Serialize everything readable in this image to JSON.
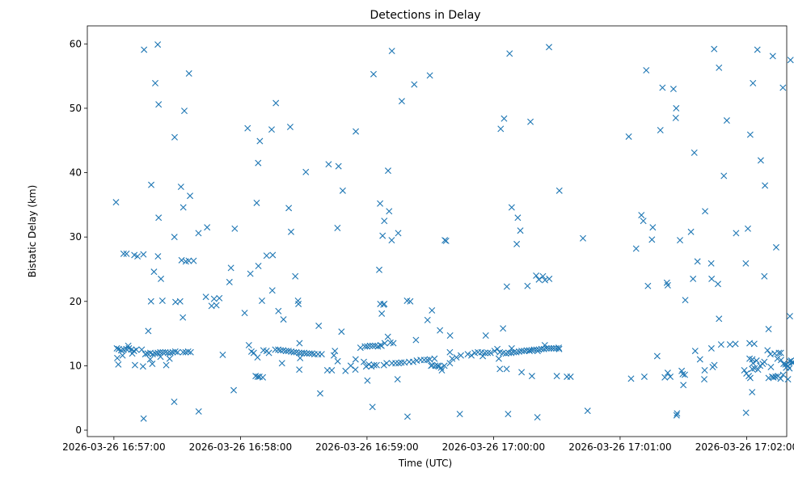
{
  "chart_data": {
    "type": "scatter",
    "title": "Detections in Delay",
    "xlabel": "Time (UTC)",
    "ylabel": "Bistatic Delay (km)",
    "marker": "x",
    "color": "#1f77b4",
    "grid": false,
    "legend": "none",
    "x_unit": "seconds after 2026-03-26 16:57:00 UTC",
    "xlim": [
      -12.6,
      319
    ],
    "ylim": [
      -1.0,
      62.8
    ],
    "x_ticks": [
      {
        "value": 0,
        "label": "2026-03-26 16:57:00"
      },
      {
        "value": 60,
        "label": "2026-03-26 16:58:00"
      },
      {
        "value": 120,
        "label": "2026-03-26 16:59:00"
      },
      {
        "value": 180,
        "label": "2026-03-26 17:00:00"
      },
      {
        "value": 240,
        "label": "2026-03-26 17:01:00"
      },
      {
        "value": 300,
        "label": "2026-03-26 17:02:00"
      }
    ],
    "y_ticks": [
      {
        "value": 0,
        "label": "0"
      },
      {
        "value": 10,
        "label": "10"
      },
      {
        "value": 20,
        "label": "20"
      },
      {
        "value": 30,
        "label": "30"
      },
      {
        "value": 40,
        "label": "40"
      },
      {
        "value": 50,
        "label": "50"
      },
      {
        "value": 60,
        "label": "60"
      }
    ],
    "points": [
      [
        14.3,
        59.1
      ],
      [
        20.8,
        59.9
      ],
      [
        19.6,
        53.9
      ],
      [
        21.2,
        50.6
      ],
      [
        35.6,
        55.4
      ],
      [
        28.8,
        45.5
      ],
      [
        33.4,
        49.6
      ],
      [
        63.4,
        46.9
      ],
      [
        69.2,
        44.9
      ],
      [
        74.8,
        46.7
      ],
      [
        83.6,
        47.1
      ],
      [
        76.8,
        50.8
      ],
      [
        101.8,
        41.3
      ],
      [
        114.7,
        46.4
      ],
      [
        123.1,
        55.3
      ],
      [
        131.8,
        58.9
      ],
      [
        136.5,
        51.1
      ],
      [
        142.4,
        53.7
      ],
      [
        149.8,
        55.1
      ],
      [
        187.6,
        58.5
      ],
      [
        183.4,
        46.8
      ],
      [
        185.0,
        48.4
      ],
      [
        197.5,
        47.9
      ],
      [
        206.3,
        59.5
      ],
      [
        252.4,
        55.9
      ],
      [
        244.1,
        45.6
      ],
      [
        260.1,
        53.2
      ],
      [
        265.3,
        53.0
      ],
      [
        266.6,
        50.0
      ],
      [
        266.4,
        48.5
      ],
      [
        284.6,
        59.2
      ],
      [
        286.9,
        56.3
      ],
      [
        290.6,
        48.1
      ],
      [
        259.1,
        46.6
      ],
      [
        275.2,
        43.1
      ],
      [
        305.1,
        59.1
      ],
      [
        303.0,
        53.9
      ],
      [
        312.4,
        58.1
      ],
      [
        320.8,
        57.5
      ],
      [
        317.2,
        53.2
      ],
      [
        301.7,
        45.9
      ],
      [
        1.0,
        35.4
      ],
      [
        17.7,
        38.1
      ],
      [
        31.8,
        37.8
      ],
      [
        21.2,
        33.0
      ],
      [
        28.7,
        30.0
      ],
      [
        32.9,
        34.6
      ],
      [
        36.1,
        36.4
      ],
      [
        40.1,
        30.6
      ],
      [
        44.2,
        31.5
      ],
      [
        57.3,
        31.3
      ],
      [
        67.7,
        35.3
      ],
      [
        68.4,
        41.5
      ],
      [
        82.9,
        34.5
      ],
      [
        84.0,
        30.8
      ],
      [
        91.0,
        40.1
      ],
      [
        106.0,
        31.4
      ],
      [
        106.5,
        41.0
      ],
      [
        108.5,
        37.2
      ],
      [
        127.4,
        30.2
      ],
      [
        126.2,
        35.2
      ],
      [
        128.2,
        32.5
      ],
      [
        130.5,
        34.0
      ],
      [
        131.7,
        29.5
      ],
      [
        134.8,
        30.6
      ],
      [
        130.0,
        40.3
      ],
      [
        156.9,
        29.5
      ],
      [
        157.5,
        29.4
      ],
      [
        191.0,
        28.9
      ],
      [
        191.5,
        33.0
      ],
      [
        192.7,
        31.0
      ],
      [
        188.6,
        34.6
      ],
      [
        211.2,
        37.2
      ],
      [
        222.4,
        29.8
      ],
      [
        250.1,
        33.4
      ],
      [
        251.0,
        32.5
      ],
      [
        255.5,
        31.5
      ],
      [
        255.1,
        29.6
      ],
      [
        262.6,
        22.5
      ],
      [
        268.4,
        29.5
      ],
      [
        273.6,
        30.8
      ],
      [
        280.3,
        34.0
      ],
      [
        289.2,
        39.5
      ],
      [
        295.0,
        30.6
      ],
      [
        300.6,
        31.3
      ],
      [
        306.7,
        41.9
      ],
      [
        308.7,
        38.0
      ],
      [
        314.0,
        28.4
      ],
      [
        283.2,
        25.9
      ],
      [
        299.6,
        25.9
      ],
      [
        286.4,
        22.7
      ],
      [
        286.9,
        17.3
      ],
      [
        274.6,
        23.5
      ],
      [
        283.4,
        23.5
      ],
      [
        276.7,
        26.2
      ],
      [
        270.9,
        20.2
      ],
      [
        262.2,
        22.9
      ],
      [
        253.2,
        22.4
      ],
      [
        247.6,
        28.2
      ],
      [
        216.5,
        8.3
      ],
      [
        214.8,
        8.3
      ],
      [
        4.6,
        27.4
      ],
      [
        6.0,
        27.4
      ],
      [
        9.7,
        27.2
      ],
      [
        11.2,
        27.0
      ],
      [
        14.0,
        27.3
      ],
      [
        20.9,
        27.0
      ],
      [
        19.0,
        24.6
      ],
      [
        22.3,
        23.5
      ],
      [
        23.0,
        20.1
      ],
      [
        17.6,
        20.0
      ],
      [
        34.1,
        26.2
      ],
      [
        35.5,
        26.3
      ],
      [
        32.1,
        26.4
      ],
      [
        37.8,
        26.3
      ],
      [
        29.2,
        19.9
      ],
      [
        31.4,
        20.0
      ],
      [
        43.6,
        20.7
      ],
      [
        47.5,
        20.4
      ],
      [
        50.0,
        20.5
      ],
      [
        46.3,
        19.3
      ],
      [
        48.6,
        19.4
      ],
      [
        55.5,
        25.2
      ],
      [
        54.8,
        23.0
      ],
      [
        64.7,
        24.3
      ],
      [
        68.5,
        25.5
      ],
      [
        70.2,
        20.1
      ],
      [
        72.4,
        27.1
      ],
      [
        75.3,
        27.2
      ],
      [
        75.1,
        21.7
      ],
      [
        78.0,
        18.5
      ],
      [
        80.4,
        17.2
      ],
      [
        86.0,
        23.9
      ],
      [
        87.5,
        19.6
      ],
      [
        87.3,
        20.1
      ],
      [
        97.1,
        16.2
      ],
      [
        107.9,
        15.3
      ],
      [
        125.8,
        24.9
      ],
      [
        126.3,
        19.6
      ],
      [
        127.0,
        18.1
      ],
      [
        127.8,
        19.5
      ],
      [
        128.2,
        19.6
      ],
      [
        148.7,
        17.1
      ],
      [
        150.8,
        18.6
      ],
      [
        154.6,
        15.5
      ],
      [
        159.4,
        14.7
      ],
      [
        176.3,
        14.7
      ],
      [
        184.5,
        15.8
      ],
      [
        200.2,
        24.0
      ],
      [
        201.5,
        23.4
      ],
      [
        203.4,
        23.9
      ],
      [
        204.4,
        23.3
      ],
      [
        206.4,
        23.5
      ],
      [
        196.1,
        22.4
      ],
      [
        186.3,
        22.3
      ],
      [
        139.0,
        20.1
      ],
      [
        140.5,
        20.0
      ],
      [
        159.3,
        12.1
      ],
      [
        308.4,
        23.9
      ],
      [
        310.4,
        15.7
      ],
      [
        316.2,
        12.0
      ],
      [
        320.5,
        17.7
      ],
      [
        275.6,
        12.3
      ],
      [
        283.3,
        12.7
      ],
      [
        280.1,
        9.3
      ],
      [
        287.9,
        13.3
      ],
      [
        292.1,
        13.3
      ],
      [
        294.7,
        13.4
      ],
      [
        301.4,
        13.5
      ],
      [
        303.6,
        13.4
      ],
      [
        2.3,
        12.6
      ],
      [
        3.4,
        12.4
      ],
      [
        4.6,
        12.5
      ],
      [
        5.9,
        12.6
      ],
      [
        7.1,
        12.7
      ],
      [
        8.3,
        12.5
      ],
      [
        9.5,
        12.3
      ],
      [
        10.6,
        12.5
      ],
      [
        1.4,
        12.7
      ],
      [
        1.6,
        11.2
      ],
      [
        2.1,
        10.2
      ],
      [
        4.1,
        11.6
      ],
      [
        6.8,
        13.1
      ],
      [
        8.7,
        11.9
      ],
      [
        10.0,
        10.1
      ],
      [
        14.9,
        11.8
      ],
      [
        16.0,
        11.9
      ],
      [
        17.3,
        12.0
      ],
      [
        18.4,
        11.8
      ],
      [
        19.6,
        11.9
      ],
      [
        20.8,
        12.0
      ],
      [
        22.0,
        12.1
      ],
      [
        23.2,
        12.1
      ],
      [
        24.4,
        12.1
      ],
      [
        25.6,
        12.0
      ],
      [
        26.8,
        12.0
      ],
      [
        27.9,
        12.1
      ],
      [
        29.1,
        12.2
      ],
      [
        30.2,
        12.1
      ],
      [
        32.8,
        12.1
      ],
      [
        34.0,
        12.1
      ],
      [
        35.2,
        12.2
      ],
      [
        36.4,
        12.1
      ],
      [
        13.2,
        12.5
      ],
      [
        13.8,
        9.9
      ],
      [
        17.2,
        11.0
      ],
      [
        18.2,
        10.3
      ],
      [
        22.1,
        11.4
      ],
      [
        26.4,
        11.1
      ],
      [
        32.7,
        17.5
      ],
      [
        24.8,
        10.1
      ],
      [
        16.3,
        15.4
      ],
      [
        51.6,
        11.7
      ],
      [
        62.0,
        18.2
      ],
      [
        64.0,
        13.2
      ],
      [
        65.2,
        12.2
      ],
      [
        66.3,
        12.0
      ],
      [
        72.4,
        12.3
      ],
      [
        73.5,
        12.0
      ],
      [
        70.6,
        8.2
      ],
      [
        70.9,
        12.4
      ],
      [
        68.2,
        8.3
      ],
      [
        69.0,
        8.3
      ],
      [
        67.2,
        8.4
      ],
      [
        68.1,
        11.3
      ],
      [
        76.5,
        12.5
      ],
      [
        77.9,
        12.5
      ],
      [
        79.0,
        12.4
      ],
      [
        80.3,
        12.4
      ],
      [
        81.6,
        12.3
      ],
      [
        82.8,
        12.3
      ],
      [
        84.1,
        12.2
      ],
      [
        85.3,
        12.1
      ],
      [
        86.5,
        12.1
      ],
      [
        87.8,
        12.0
      ],
      [
        89.0,
        12.0
      ],
      [
        90.2,
        12.0
      ],
      [
        91.4,
        11.9
      ],
      [
        92.7,
        11.9
      ],
      [
        93.9,
        11.9
      ],
      [
        95.1,
        11.8
      ],
      [
        96.8,
        11.8
      ],
      [
        98.5,
        11.8
      ],
      [
        88.3,
        11.2
      ],
      [
        88.0,
        13.5
      ],
      [
        79.7,
        10.4
      ],
      [
        87.9,
        9.4
      ],
      [
        101.2,
        9.3
      ],
      [
        103.3,
        9.3
      ],
      [
        104.3,
        11.6
      ],
      [
        106.1,
        10.7
      ],
      [
        104.8,
        12.3
      ],
      [
        109.8,
        9.2
      ],
      [
        112.3,
        10.0
      ],
      [
        114.6,
        11.0
      ],
      [
        116.9,
        12.8
      ],
      [
        118.5,
        10.6
      ],
      [
        119.0,
        13.0
      ],
      [
        119.6,
        9.9
      ],
      [
        120.1,
        13.0
      ],
      [
        120.9,
        10.2
      ],
      [
        121.4,
        13.1
      ],
      [
        122.1,
        9.9
      ],
      [
        122.7,
        13.1
      ],
      [
        123.4,
        10.1
      ],
      [
        123.9,
        13.1
      ],
      [
        124.6,
        10.1
      ],
      [
        125.2,
        13.0
      ],
      [
        126.4,
        13.2
      ],
      [
        126.9,
        13.1
      ],
      [
        128.0,
        10.1
      ],
      [
        128.4,
        13.5
      ],
      [
        129.3,
        10.4
      ],
      [
        131.1,
        13.6
      ],
      [
        131.8,
        10.4
      ],
      [
        132.5,
        13.5
      ],
      [
        133.5,
        10.4
      ],
      [
        135.0,
        10.4
      ],
      [
        136.3,
        10.5
      ],
      [
        137.8,
        10.5
      ],
      [
        140.0,
        10.6
      ],
      [
        141.9,
        10.6
      ],
      [
        143.2,
        14.0
      ],
      [
        143.6,
        10.8
      ],
      [
        145.4,
        10.9
      ],
      [
        147.1,
        10.9
      ],
      [
        148.6,
        10.9
      ],
      [
        149.8,
        11.0
      ],
      [
        150.4,
        10.0
      ],
      [
        150.9,
        10.1
      ],
      [
        152.0,
        11.1
      ],
      [
        152.4,
        10.0
      ],
      [
        153.5,
        10.0
      ],
      [
        154.0,
        9.9
      ],
      [
        155.1,
        9.7
      ],
      [
        155.5,
        9.3
      ],
      [
        156.7,
        10.0
      ],
      [
        159.3,
        10.4
      ],
      [
        160.4,
        11.1
      ],
      [
        162.4,
        11.3
      ],
      [
        164.5,
        11.6
      ],
      [
        167.8,
        11.8
      ],
      [
        169.5,
        11.6
      ],
      [
        171.1,
        12.0
      ],
      [
        172.6,
        12.1
      ],
      [
        174.3,
        12.1
      ],
      [
        175.9,
        12.0
      ],
      [
        177.3,
        12.0
      ],
      [
        178.6,
        12.0
      ],
      [
        180.5,
        12.3
      ],
      [
        181.8,
        12.6
      ],
      [
        183.0,
        12.1
      ],
      [
        184.5,
        12.0
      ],
      [
        185.9,
        11.9
      ],
      [
        187.2,
        12.0
      ],
      [
        188.4,
        12.0
      ],
      [
        189.6,
        12.1
      ],
      [
        190.8,
        12.1
      ],
      [
        192.1,
        12.2
      ],
      [
        193.3,
        12.3
      ],
      [
        194.5,
        12.3
      ],
      [
        195.7,
        12.4
      ],
      [
        196.9,
        12.4
      ],
      [
        198.1,
        12.4
      ],
      [
        199.2,
        12.5
      ],
      [
        200.3,
        12.5
      ],
      [
        201.5,
        12.5
      ],
      [
        202.7,
        12.6
      ],
      [
        203.9,
        12.6
      ],
      [
        205.1,
        12.7
      ],
      [
        206.3,
        12.7
      ],
      [
        207.4,
        12.7
      ],
      [
        208.5,
        12.7
      ],
      [
        209.7,
        12.7
      ],
      [
        210.9,
        12.8
      ],
      [
        211.1,
        12.6
      ],
      [
        198.2,
        8.4
      ],
      [
        210.0,
        8.4
      ],
      [
        193.3,
        9.0
      ],
      [
        186.2,
        9.5
      ],
      [
        183.0,
        9.5
      ],
      [
        182.5,
        11.1
      ],
      [
        188.6,
        12.7
      ],
      [
        197.1,
        12.3
      ],
      [
        200.9,
        12.3
      ],
      [
        204.3,
        13.2
      ],
      [
        224.6,
        3.0
      ],
      [
        174.9,
        11.5
      ],
      [
        245.2,
        8.0
      ],
      [
        251.5,
        8.3
      ],
      [
        257.6,
        11.5
      ],
      [
        261.2,
        8.2
      ],
      [
        263.8,
        8.3
      ],
      [
        262.6,
        8.9
      ],
      [
        269.7,
        8.7
      ],
      [
        269.2,
        9.2
      ],
      [
        270.0,
        7.0
      ],
      [
        270.7,
        8.6
      ],
      [
        277.9,
        11.0
      ],
      [
        279.9,
        7.9
      ],
      [
        283.9,
        9.8
      ],
      [
        284.7,
        10.1
      ],
      [
        298.9,
        9.3
      ],
      [
        299.9,
        8.8
      ],
      [
        301.0,
        8.4
      ],
      [
        301.7,
        8.1
      ],
      [
        302.6,
        9.5
      ],
      [
        303.0,
        10.4
      ],
      [
        303.8,
        9.6
      ],
      [
        304.7,
        10.8
      ],
      [
        305.4,
        9.4
      ],
      [
        306.4,
        10.0
      ],
      [
        307.6,
        10.3
      ],
      [
        308.4,
        10.6
      ],
      [
        309.9,
        12.4
      ],
      [
        311.5,
        9.8
      ],
      [
        312.7,
        8.2
      ],
      [
        313.3,
        11.9
      ],
      [
        314.6,
        11.1
      ],
      [
        315.3,
        12.0
      ],
      [
        316.3,
        10.9
      ],
      [
        317.5,
        10.3
      ],
      [
        318.4,
        10.2
      ],
      [
        319.6,
        10.0
      ],
      [
        320.4,
        10.7
      ],
      [
        321.1,
        10.8
      ],
      [
        321.6,
        10.5
      ],
      [
        322.2,
        10.5
      ],
      [
        310.4,
        8.1
      ],
      [
        312.1,
        8.3
      ],
      [
        313.7,
        8.3
      ],
      [
        314.9,
        8.4
      ],
      [
        316.1,
        8.0
      ],
      [
        317.3,
        8.6
      ],
      [
        318.7,
        9.7
      ],
      [
        319.6,
        7.9
      ],
      [
        320.3,
        9.6
      ],
      [
        311.3,
        11.8
      ],
      [
        302.7,
        11.0
      ],
      [
        301.4,
        11.1
      ],
      [
        302.6,
        5.9
      ],
      [
        299.7,
        2.7
      ],
      [
        14.1,
        1.8
      ],
      [
        28.6,
        4.4
      ],
      [
        40.2,
        2.9
      ],
      [
        56.8,
        6.2
      ],
      [
        97.8,
        5.7
      ],
      [
        122.6,
        3.6
      ],
      [
        139.2,
        2.1
      ],
      [
        164.0,
        2.5
      ],
      [
        186.9,
        2.5
      ],
      [
        200.8,
        2.0
      ],
      [
        267.0,
        2.6
      ],
      [
        266.8,
        2.3
      ],
      [
        114.5,
        9.4
      ],
      [
        120.2,
        7.7
      ],
      [
        134.5,
        7.9
      ],
      [
        129.9,
        14.5
      ]
    ]
  }
}
